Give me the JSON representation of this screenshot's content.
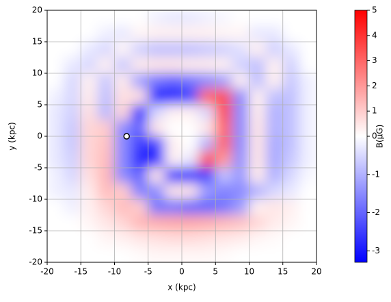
{
  "chart_data": {
    "type": "heatmap",
    "xlabel": "x (kpc)",
    "ylabel": "y (kpc)",
    "colorbar_label": "B(μG)",
    "xlim": [
      -20,
      20
    ],
    "ylim": [
      -20,
      20
    ],
    "xticks": [
      -20,
      -15,
      -10,
      -5,
      0,
      5,
      10,
      15,
      20
    ],
    "yticks": [
      -20,
      -15,
      -10,
      -5,
      0,
      5,
      10,
      15,
      20
    ],
    "grid": true,
    "clim": [
      -3.3,
      5
    ],
    "colorbar_center": 0,
    "cticks": [
      -3,
      -2,
      -1,
      0,
      1,
      2,
      3,
      4,
      5
    ],
    "colors": {
      "low": "#0000ff",
      "mid": "#ffffff",
      "high": "#ff0000"
    },
    "x": [
      -18.75,
      -16.25,
      -13.75,
      -11.25,
      -8.75,
      -6.25,
      -3.75,
      -1.25,
      1.25,
      3.75,
      6.25,
      8.75,
      11.25,
      13.75,
      16.25,
      18.75
    ],
    "y": [
      18.75,
      16.25,
      13.75,
      11.25,
      8.75,
      6.25,
      3.75,
      1.25,
      -1.25,
      -3.75,
      -6.25,
      -8.75,
      -11.25,
      -13.75,
      -16.25,
      -18.75
    ],
    "z": [
      [
        0,
        0,
        0,
        0,
        0,
        0,
        -0.2,
        -0.3,
        -0.3,
        -0.2,
        -0.1,
        0,
        0,
        0,
        0,
        0
      ],
      [
        0,
        0,
        0,
        -0.2,
        -0.3,
        0.2,
        0.3,
        0.3,
        0.3,
        0.3,
        0.2,
        0.2,
        -0.3,
        -0.3,
        0,
        0
      ],
      [
        0,
        0,
        -0.3,
        -0.5,
        0.2,
        -0.6,
        -0.8,
        -0.8,
        -0.8,
        -0.7,
        -0.6,
        -0.4,
        0.3,
        -0.6,
        -0.3,
        0
      ],
      [
        0,
        -0.3,
        -0.5,
        0.3,
        -0.7,
        0.4,
        0.5,
        0.5,
        0.4,
        0.4,
        0.3,
        -0.6,
        -0.8,
        0.3,
        -0.6,
        0
      ],
      [
        0,
        -0.5,
        0.3,
        -0.7,
        0.4,
        -1.2,
        -1.8,
        -2,
        -1.8,
        -1.5,
        -1.2,
        0.3,
        -0.8,
        0.3,
        -0.7,
        -0.2
      ],
      [
        -0.2,
        -0.5,
        0.4,
        -0.8,
        0.6,
        0.6,
        -3,
        -3,
        -2.5,
        3,
        3.5,
        -1.5,
        0.3,
        -0.8,
        -0.8,
        -0.2
      ],
      [
        -0.3,
        -0.6,
        0.6,
        -0.9,
        0.8,
        -3,
        -0.5,
        0.3,
        0.3,
        -0.5,
        3.5,
        -1.5,
        0.4,
        -1,
        -0.8,
        -0.2
      ],
      [
        -0.3,
        -0.7,
        0.8,
        1,
        -1.5,
        -2,
        0.5,
        0,
        0,
        0.5,
        3,
        -1.5,
        0.5,
        -1,
        -0.8,
        -0.2
      ],
      [
        -0.3,
        -0.7,
        0.8,
        1.2,
        -1.5,
        -2.5,
        -2.5,
        0.3,
        0,
        -1,
        3,
        -1.5,
        0.5,
        -1.1,
        -0.8,
        -0.2
      ],
      [
        -0.3,
        -0.6,
        0.8,
        1.3,
        -1.5,
        -2.8,
        -3,
        0.3,
        -0.3,
        3.5,
        2,
        -1.4,
        0.5,
        -1.1,
        -0.7,
        -0.2
      ],
      [
        -0.2,
        -0.5,
        0.6,
        1.4,
        -1.5,
        -2,
        0.5,
        -3,
        -3,
        -2.5,
        -0.8,
        -1.3,
        0.4,
        -1,
        -0.5,
        -0.1
      ],
      [
        -0.2,
        -0.3,
        0.4,
        1.3,
        1,
        -1.6,
        -1.5,
        0.5,
        0.5,
        -1.3,
        -1.6,
        -1.5,
        -1,
        -0.5,
        -0.3,
        0
      ],
      [
        0,
        -0.2,
        0.3,
        0.8,
        1.3,
        1,
        -1.8,
        -1.8,
        -2,
        -2,
        -1.8,
        -1.3,
        0.3,
        0.5,
        0.3,
        0
      ],
      [
        0,
        0,
        0.2,
        0.5,
        0.8,
        1.4,
        1.6,
        1.7,
        1.7,
        1.6,
        1.4,
        1.2,
        0.8,
        0.4,
        0.2,
        0
      ],
      [
        0,
        0,
        0,
        0.2,
        0.3,
        0.5,
        0.6,
        0.7,
        0.7,
        0.6,
        0.5,
        0.4,
        0.2,
        0.1,
        0,
        0
      ],
      [
        0,
        0,
        0,
        0,
        0,
        0.1,
        0.2,
        0.2,
        0.2,
        0.2,
        0.1,
        0,
        0,
        0,
        0,
        0
      ]
    ],
    "points": {
      "x": [
        -8.2
      ],
      "y": [
        0
      ]
    }
  }
}
